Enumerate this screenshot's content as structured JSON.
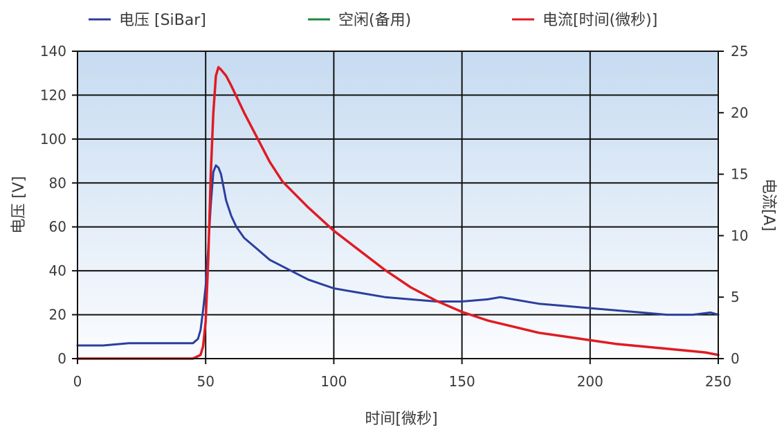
{
  "chart_data": {
    "type": "line",
    "xlabel": "时间[微秒]",
    "ylabel": "电压 [V]",
    "y2label": "电流[A]",
    "xlim": [
      0,
      250
    ],
    "ylim": [
      0,
      140
    ],
    "y2lim": [
      0,
      25
    ],
    "x_ticks": [
      0,
      50,
      100,
      150,
      200,
      250
    ],
    "y_ticks": [
      0,
      20,
      40,
      60,
      80,
      100,
      120,
      140
    ],
    "y2_ticks": [
      0,
      5,
      10,
      15,
      20,
      25
    ],
    "grid": true,
    "legend_position": "top",
    "series": [
      {
        "name": "电压 [SiBar]",
        "axis": "left",
        "color": "#2b3f9e",
        "x": [
          0,
          10,
          20,
          30,
          40,
          45,
          47,
          48,
          49,
          50,
          51,
          52,
          53,
          54,
          55,
          56,
          57,
          58,
          60,
          62,
          65,
          70,
          75,
          80,
          85,
          90,
          95,
          100,
          110,
          120,
          130,
          140,
          150,
          160,
          165,
          170,
          180,
          190,
          200,
          210,
          220,
          230,
          240,
          247,
          250
        ],
        "y": [
          6,
          6,
          7,
          7,
          7,
          7,
          9,
          13,
          22,
          33,
          50,
          70,
          85,
          88,
          87,
          84,
          78,
          72,
          65,
          60,
          55,
          50,
          45,
          42,
          39,
          36,
          34,
          32,
          30,
          28,
          27,
          26,
          26,
          27,
          28,
          27,
          25,
          24,
          23,
          22,
          21,
          20,
          20,
          21,
          20
        ]
      },
      {
        "name": "空闲(备用)",
        "axis": "left",
        "color": "#1e8a3c",
        "x": [],
        "y": []
      },
      {
        "name": "电流[时间(微秒)]",
        "axis": "right",
        "color": "#e01b22",
        "x": [
          0,
          10,
          20,
          30,
          40,
          45,
          48,
          49,
          50,
          51,
          52,
          53,
          54,
          55,
          56,
          58,
          60,
          65,
          70,
          75,
          80,
          90,
          100,
          110,
          120,
          130,
          140,
          150,
          160,
          170,
          180,
          190,
          200,
          210,
          220,
          230,
          240,
          245,
          250
        ],
        "y": [
          0,
          0,
          0,
          0,
          0,
          0,
          0.3,
          1,
          3,
          8,
          15,
          20,
          23,
          23.7,
          23.5,
          23,
          22.2,
          20,
          18,
          16,
          14.4,
          12.3,
          10.4,
          8.8,
          7.2,
          5.8,
          4.7,
          3.8,
          3.1,
          2.6,
          2.1,
          1.8,
          1.5,
          1.2,
          1.0,
          0.8,
          0.6,
          0.5,
          0.3
        ]
      }
    ]
  }
}
